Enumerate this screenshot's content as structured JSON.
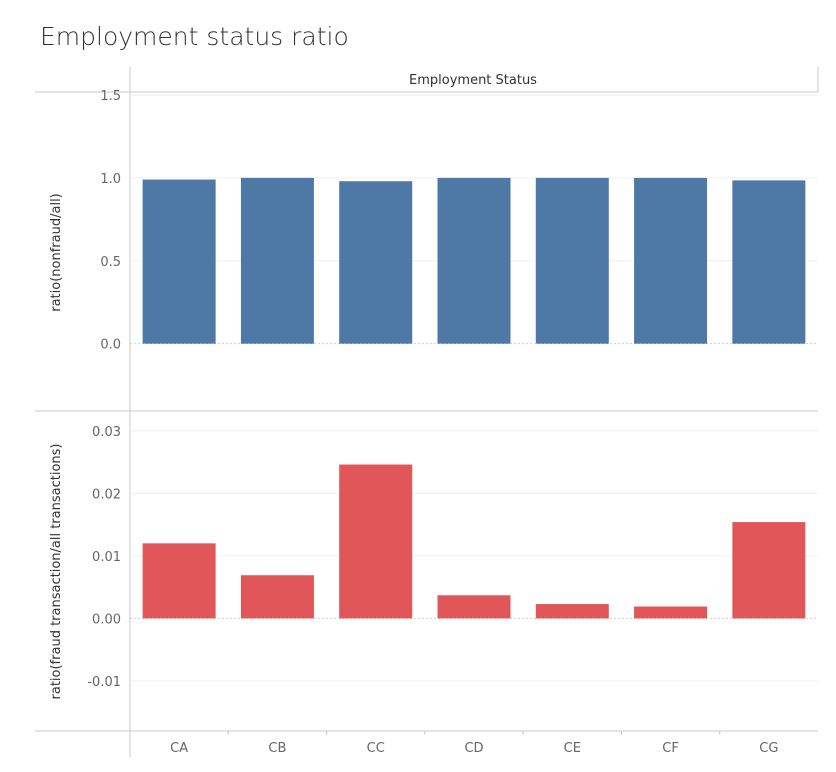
{
  "title": "Employment status ratio",
  "header": "Employment Status",
  "chart_data": [
    {
      "type": "bar",
      "categories": [
        "CA",
        "CB",
        "CC",
        "CD",
        "CE",
        "CF",
        "CG"
      ],
      "values": [
        0.99,
        1.0,
        0.98,
        1.0,
        1.0,
        1.0,
        0.985
      ],
      "ylabel": "ratio(nonfraud/all)",
      "ylim": [
        -0.4,
        1.5
      ],
      "yticks": [
        0.0,
        0.5,
        1.0,
        1.5
      ],
      "ytick_labels": [
        "0.0",
        "0.5",
        "1.0",
        "1.5"
      ],
      "color": "#4e79a7",
      "grid": true
    },
    {
      "type": "bar",
      "categories": [
        "CA",
        "CB",
        "CC",
        "CD",
        "CE",
        "CF",
        "CG"
      ],
      "values": [
        0.012,
        0.0069,
        0.0246,
        0.0037,
        0.0023,
        0.0019,
        0.0154
      ],
      "ylabel": "ratio(fraud transaction/all transactions)",
      "ylim": [
        -0.018,
        0.033
      ],
      "yticks": [
        -0.01,
        0.0,
        0.01,
        0.02,
        0.03
      ],
      "ytick_labels": [
        "-0.01",
        "0.00",
        "0.01",
        "0.02",
        "0.03"
      ],
      "color": "#e15759",
      "grid": true
    }
  ]
}
